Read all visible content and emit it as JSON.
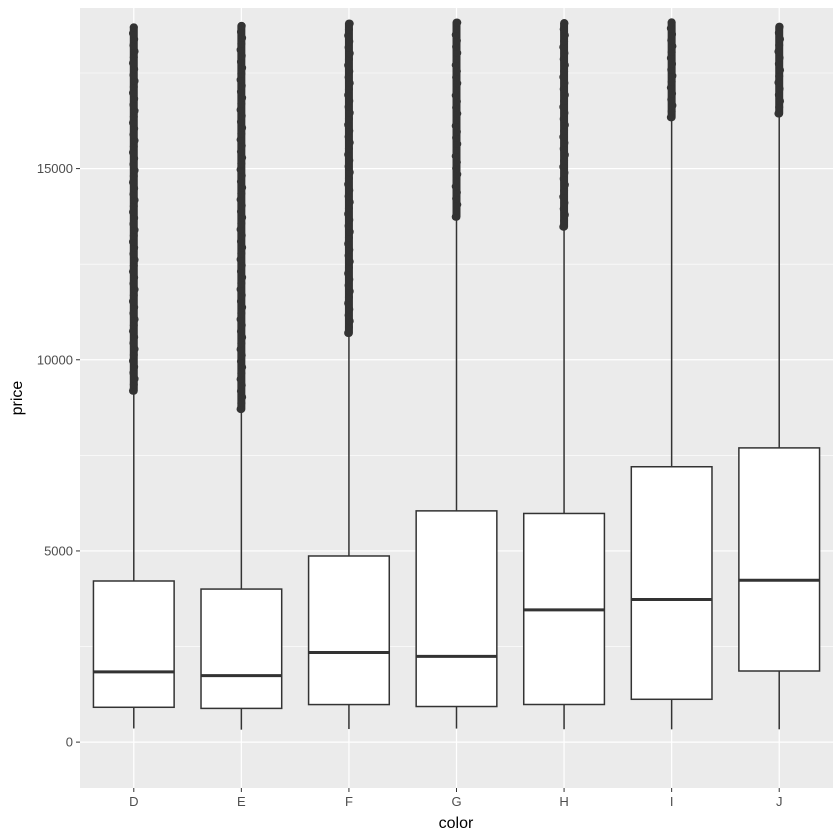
{
  "chart_data": {
    "type": "boxplot",
    "title": "",
    "xlabel": "color",
    "ylabel": "price",
    "ylim": [
      -1200,
      19200
    ],
    "y_ticks": [
      0,
      5000,
      10000,
      15000
    ],
    "y_tick_labels": [
      "0",
      "5000",
      "10000",
      "15000"
    ],
    "grid": true,
    "legend": "none",
    "categories": [
      "D",
      "E",
      "F",
      "G",
      "H",
      "I",
      "J"
    ],
    "boxes": [
      {
        "category": "D",
        "whisker_low": 357,
        "q1": 911,
        "median": 1838,
        "q3": 4214,
        "whisker_high": 9167,
        "outliers_range": [
          9190,
          18693
        ]
      },
      {
        "category": "E",
        "whisker_low": 326,
        "q1": 882,
        "median": 1739,
        "q3": 4003,
        "whisker_high": 8684,
        "outliers_range": [
          8710,
          18731
        ]
      },
      {
        "category": "F",
        "whisker_low": 342,
        "q1": 982,
        "median": 2344,
        "q3": 4868,
        "whisker_high": 10686,
        "outliers_range": [
          10700,
          18791
        ]
      },
      {
        "category": "G",
        "whisker_low": 354,
        "q1": 931,
        "median": 2242,
        "q3": 6048,
        "whisker_high": 13724,
        "outliers_range": [
          13740,
          18818
        ]
      },
      {
        "category": "H",
        "whisker_low": 337,
        "q1": 984,
        "median": 3460,
        "q3": 5980,
        "whisker_high": 13469,
        "outliers_range": [
          13480,
          18803
        ]
      },
      {
        "category": "I",
        "whisker_low": 334,
        "q1": 1120,
        "median": 3730,
        "q3": 7202,
        "whisker_high": 16325,
        "outliers_range": [
          16340,
          18823
        ]
      },
      {
        "category": "J",
        "whisker_low": 335,
        "q1": 1860,
        "median": 4234,
        "q3": 7695,
        "whisker_high": 16425,
        "outliers_range": [
          16440,
          18710
        ]
      }
    ],
    "colors": {
      "panel_background": "#ebebeb",
      "gridline": "#ffffff",
      "box_fill": "#ffffff",
      "box_line": "#333333",
      "outlier": "#333333",
      "tick_label": "#4d4d4d",
      "axis_title": "#000000"
    }
  }
}
